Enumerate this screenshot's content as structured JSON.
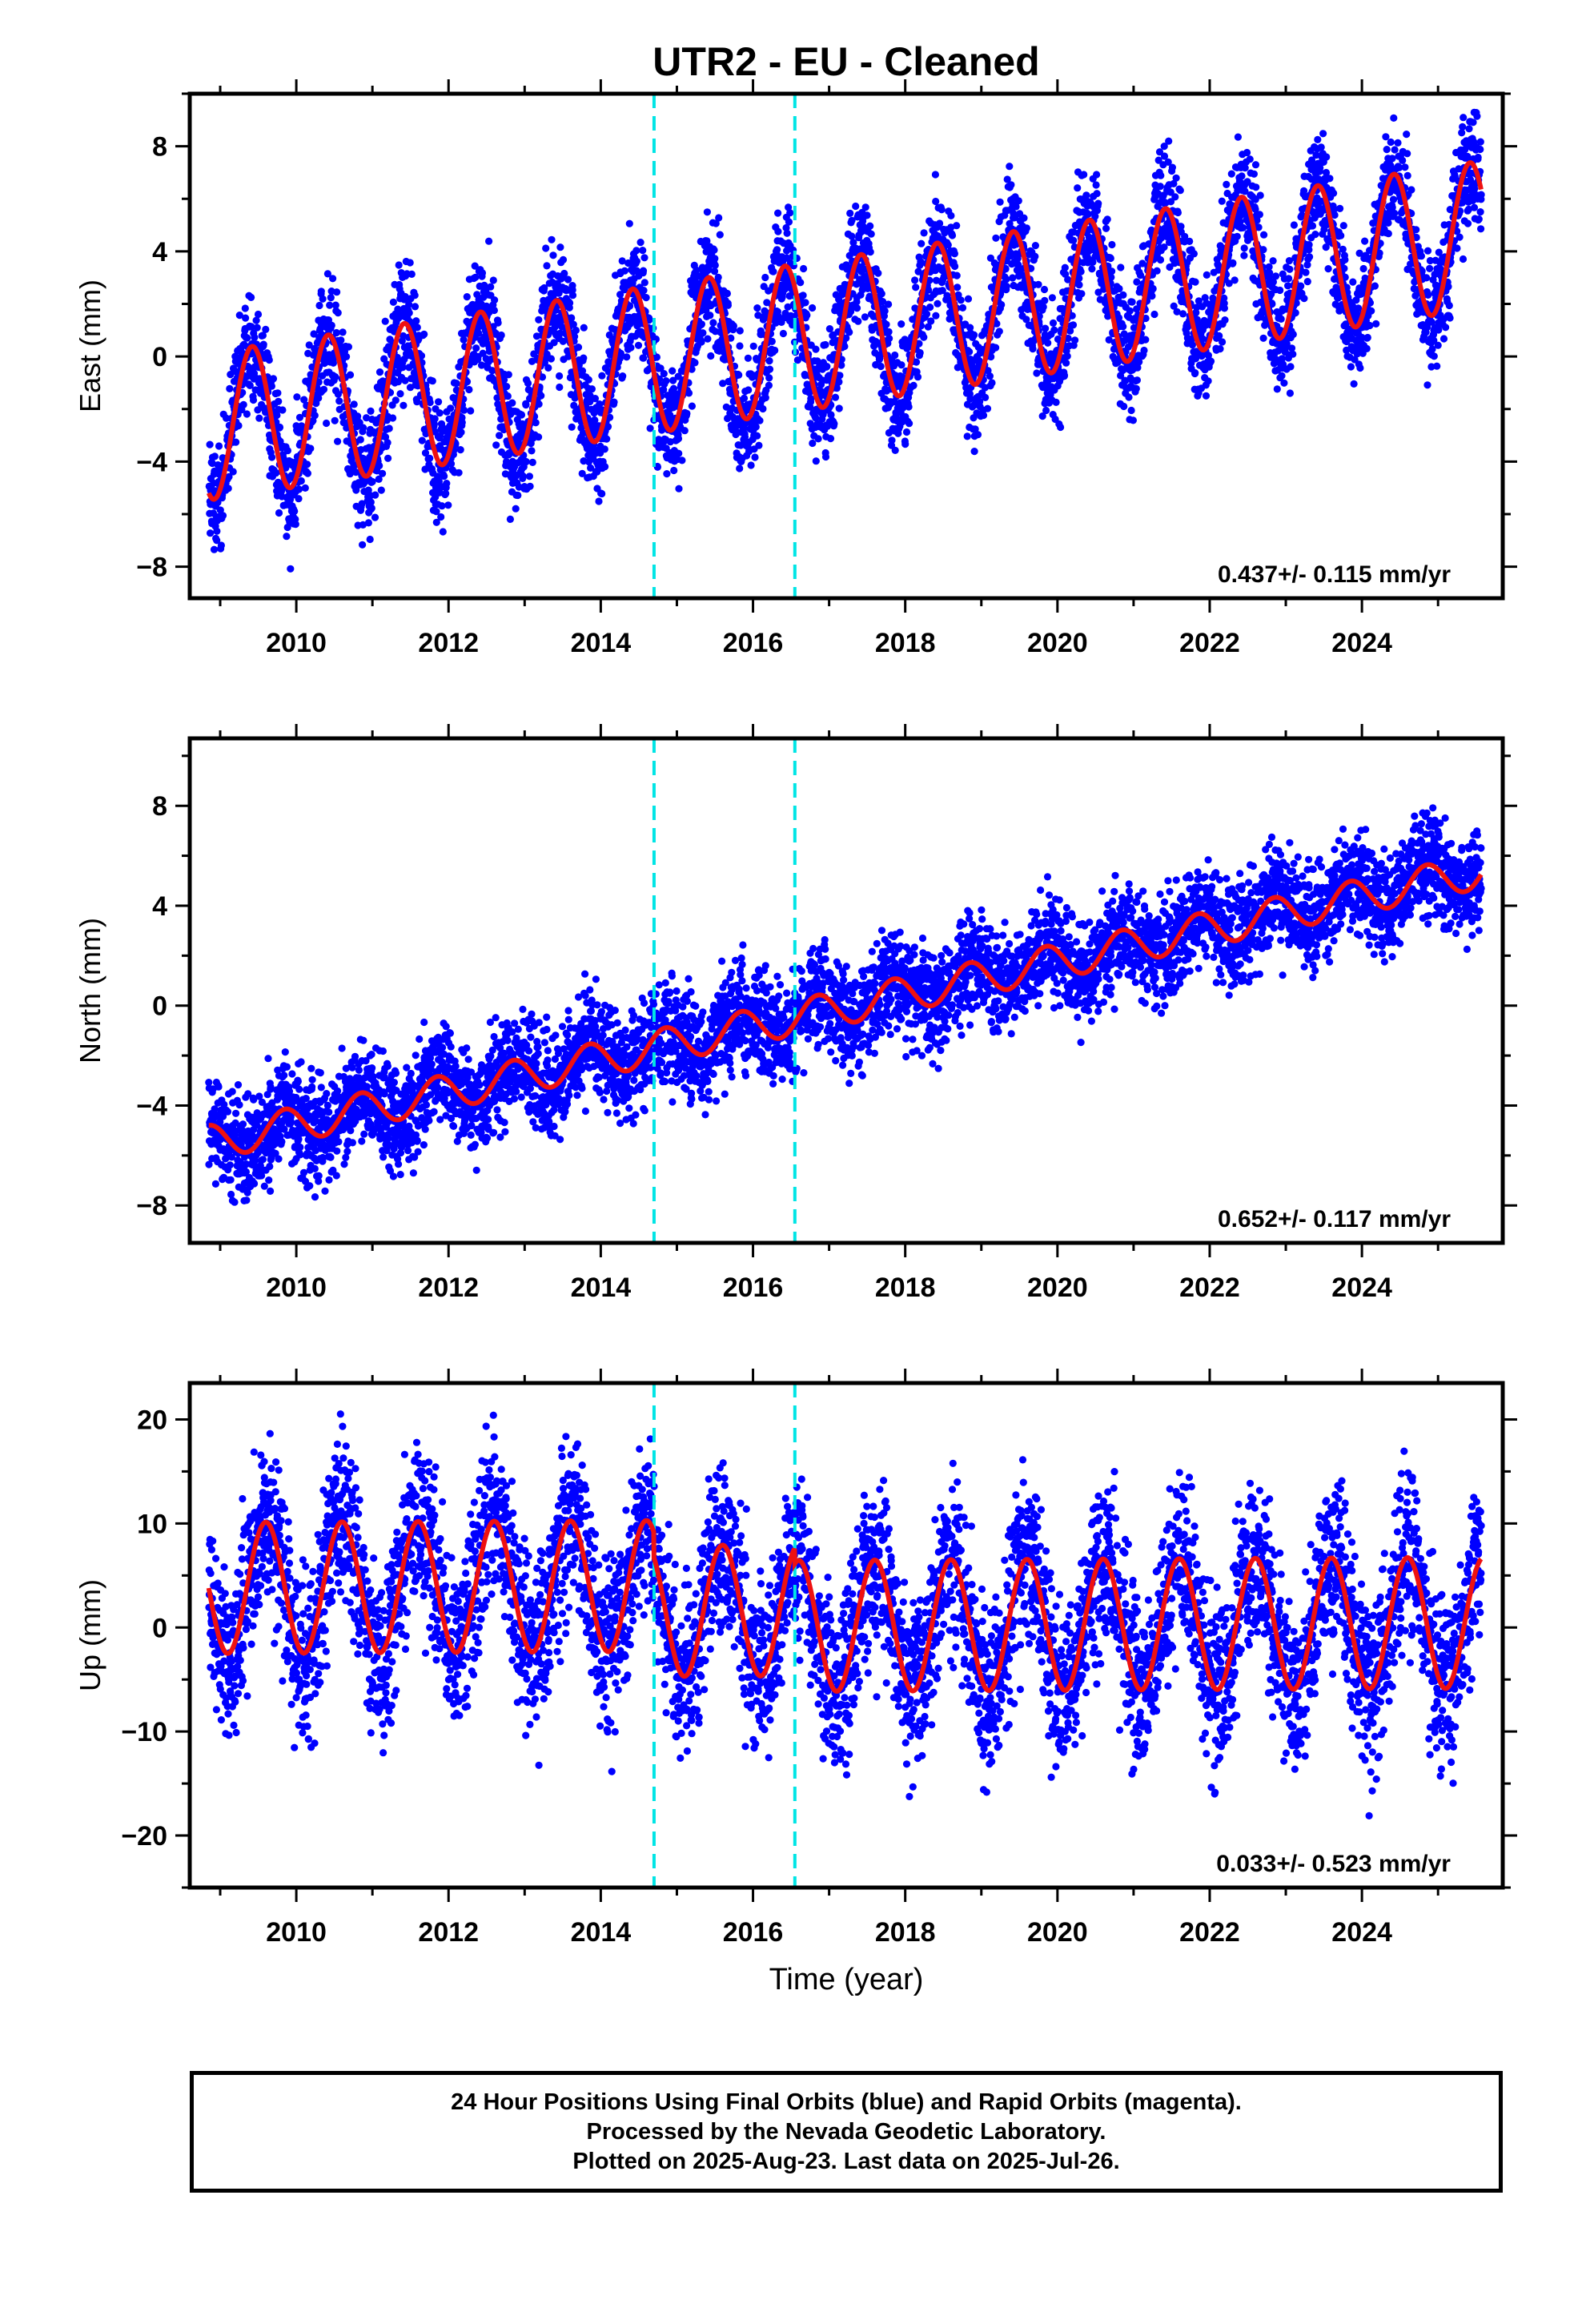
{
  "title": "UTR2  - EU - Cleaned",
  "caption": [
    "24 Hour Positions Using Final Orbits (blue) and Rapid Orbits (magenta).",
    "Processed by the Nevada Geodetic Laboratory.",
    "Plotted on 2025-Aug-23. Last data on 2025-Jul-26."
  ],
  "colors": {
    "points": "#0000ff",
    "model": "#ee1111",
    "steps": "#00e5e5"
  },
  "chart_data": [
    {
      "type": "scatter",
      "ylabel": "East (mm)",
      "xlabel": "",
      "xlim": [
        2008.6,
        2025.85
      ],
      "ylim": [
        -9.2,
        10.0
      ],
      "xticks": [
        2010,
        2012,
        2014,
        2016,
        2018,
        2020,
        2022,
        2024
      ],
      "yticks": [
        -8,
        -4,
        0,
        4,
        8
      ],
      "rate_label": "0.437+/- 0.115 mm/yr",
      "step_lines": [
        2014.7,
        2016.55
      ],
      "data_range": [
        2008.85,
        2025.57
      ],
      "model": {
        "intercept_at_2009": -2.6,
        "trend_mm_per_yr": 0.437,
        "annual_amplitude": 2.8,
        "annual_phase_peak": 0.42,
        "scatter": 1.1
      }
    },
    {
      "type": "scatter",
      "ylabel": "North (mm)",
      "xlabel": "",
      "xlim": [
        2008.6,
        2025.85
      ],
      "ylim": [
        -9.5,
        10.7
      ],
      "xticks": [
        2010,
        2012,
        2014,
        2016,
        2018,
        2020,
        2022,
        2024
      ],
      "yticks": [
        -8,
        -4,
        0,
        4,
        8
      ],
      "rate_label": "0.652+/- 0.117 mm/yr",
      "step_lines": [
        2014.7,
        2016.55
      ],
      "data_range": [
        2008.85,
        2025.57
      ],
      "model": {
        "intercept_at_2009": -5.4,
        "trend_mm_per_yr": 0.652,
        "annual_amplitude": 0.7,
        "annual_phase_peak": 0.85,
        "scatter": 1.0
      }
    },
    {
      "type": "scatter",
      "ylabel": "Up (mm)",
      "xlabel": "Time (year)",
      "xlim": [
        2008.6,
        2025.85
      ],
      "ylim": [
        -25.0,
        23.5
      ],
      "xticks": [
        2010,
        2012,
        2014,
        2016,
        2018,
        2020,
        2022,
        2024
      ],
      "yticks": [
        -20,
        -10,
        0,
        10,
        20
      ],
      "rate_label": "0.033+/- 0.523 mm/yr",
      "step_lines": [
        2014.7,
        2016.55
      ],
      "data_range": [
        2008.85,
        2025.57
      ],
      "model": {
        "intercept_at_2009": 3.8,
        "trend_mm_per_yr": 0.033,
        "annual_amplitude": 6.3,
        "annual_phase_peak": 0.6,
        "scatter": 4.0,
        "offsets": [
          [
            2014.7,
            -2.4
          ],
          [
            2016.55,
            -1.5
          ]
        ]
      }
    }
  ]
}
